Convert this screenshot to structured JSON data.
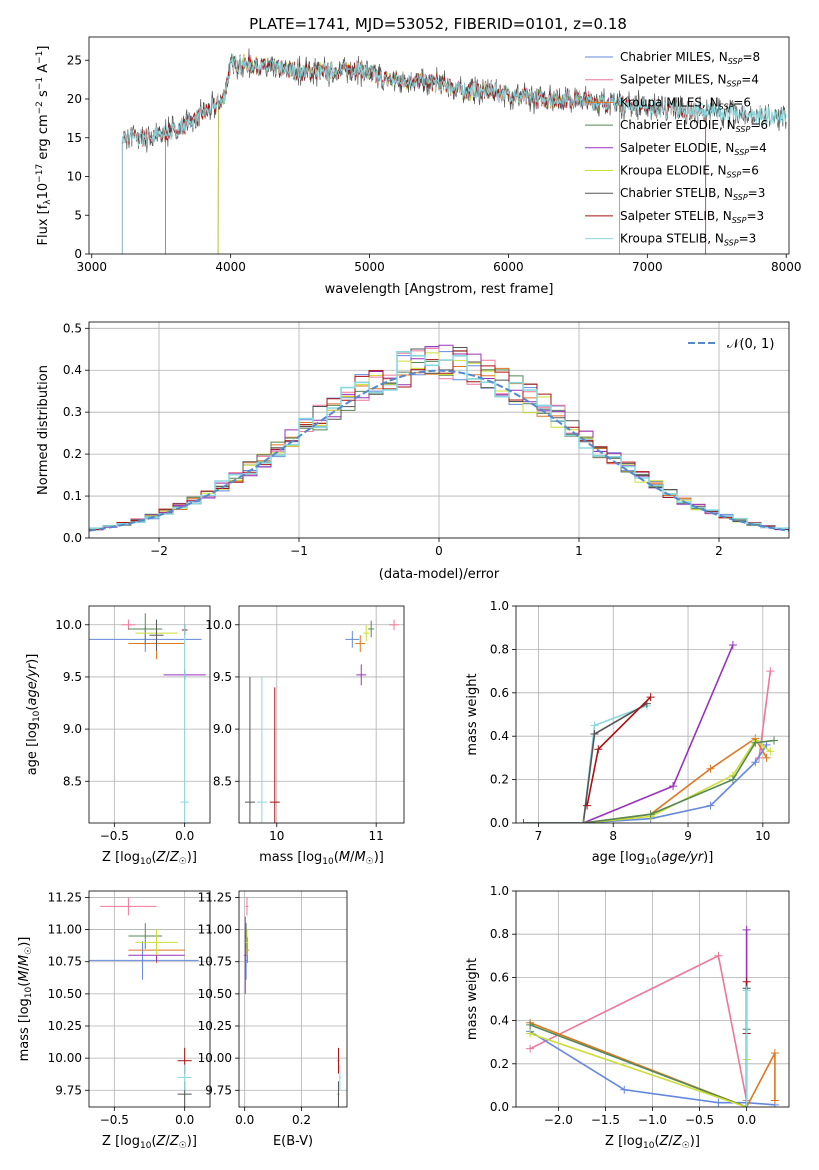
{
  "figure_title": "PLATE=1741, MJD=53052, FIBERID=0101, z=0.18",
  "colors": {
    "Chabrier MILES": "#6688dd",
    "Salpeter MILES": "#ee7799",
    "Kroupa MILES": "#dd7722",
    "Chabrier ELODIE": "#558855",
    "Salpeter ELODIE": "#9933bb",
    "Kroupa ELODIE": "#ccdd33",
    "Chabrier STELIB": "#555555",
    "Salpeter STELIB": "#aa1111",
    "Kroupa STELIB": "#88d8dd",
    "gauss": "#5588cc",
    "grid": "#b0b0b0"
  },
  "chart_data": [
    {
      "id": "spectrum",
      "type": "line",
      "title": "PLATE=1741, MJD=53052, FIBERID=0101, z=0.18",
      "xlabel": "wavelength [Angstrom, rest frame]",
      "ylabel": "Flux [f_λ 10^-17 erg cm^-2 s^-1 A^-1]",
      "xlim": [
        2980,
        8020
      ],
      "ylim": [
        0,
        28
      ],
      "xticks": [
        3000,
        4000,
        5000,
        6000,
        7000,
        8000
      ],
      "yticks": [
        0,
        5,
        10,
        15,
        20,
        25
      ],
      "grid": false,
      "legend_position": "top-right",
      "legend": [
        {
          "base": "Chabrier MILES",
          "n": "8"
        },
        {
          "base": "Salpeter MILES",
          "n": "4"
        },
        {
          "base": "Kroupa MILES",
          "n": "6"
        },
        {
          "base": "Chabrier ELODIE",
          "n": "6"
        },
        {
          "base": "Salpeter ELODIE",
          "n": "4"
        },
        {
          "base": "Kroupa ELODIE",
          "n": "6"
        },
        {
          "base": "Chabrier STELIB",
          "n": "3"
        },
        {
          "base": "Salpeter STELIB",
          "n": "3"
        },
        {
          "base": "Kroupa STELIB",
          "n": "3"
        }
      ],
      "continuum": {
        "x": [
          3220,
          3300,
          3450,
          3600,
          3800,
          3950,
          4000,
          4100,
          4300,
          4500,
          4700,
          4900,
          5100,
          5300,
          5500,
          5700,
          5900,
          6100,
          6300,
          6500,
          6700,
          6900,
          7100,
          7300,
          7500,
          7700,
          7900,
          8000
        ],
        "y": [
          15,
          15,
          15.2,
          16,
          18,
          20,
          24.5,
          24.5,
          24,
          23.5,
          23.5,
          24,
          22.5,
          22.5,
          22,
          21,
          21,
          20.2,
          20,
          20,
          19.5,
          19.3,
          18.8,
          18.5,
          18.3,
          18,
          17.7,
          17.5
        ]
      },
      "model_starts": [
        {
          "model": "Chabrier MILES",
          "start": 3530
        },
        {
          "model": "Salpeter MILES",
          "start": 3530
        },
        {
          "model": "Kroupa MILES",
          "start": 3530
        },
        {
          "model": "Chabrier ELODIE",
          "start": 3910
        },
        {
          "model": "Salpeter ELODIE",
          "start": 3910
        },
        {
          "model": "Kroupa ELODIE",
          "start": 3910
        },
        {
          "model": "Chabrier STELIB",
          "start": 3220
        },
        {
          "model": "Salpeter STELIB",
          "start": 3220
        },
        {
          "model": "Kroupa STELIB",
          "start": 3220
        }
      ]
    },
    {
      "id": "residuals",
      "type": "line",
      "xlabel": "(data-model)/error",
      "ylabel": "Normed distribution",
      "xlim": [
        -2.5,
        2.5
      ],
      "ylim": [
        0,
        0.515
      ],
      "xticks": [
        -2,
        -1,
        0,
        1,
        2
      ],
      "yticks": [
        0.0,
        0.1,
        0.2,
        0.3,
        0.4,
        0.5
      ],
      "grid": true,
      "legend_position": "top-right",
      "legend_label": "𝒩(0, 1)",
      "bin_width": 0.1
    },
    {
      "id": "age_vs_Z",
      "type": "scatter",
      "xlabel": "Z [log10(Z/Z☉)]",
      "ylabel": "age  [log10(age/yr)]",
      "xlim": [
        -0.68,
        0.18
      ],
      "ylim": [
        8.1,
        10.18
      ],
      "xticks": [
        -0.5,
        0.0
      ],
      "yticks": [
        8.5,
        9.0,
        9.5,
        10.0
      ],
      "grid": true,
      "points": [
        {
          "model": "Chabrier MILES",
          "x": -0.28,
          "y": 9.86,
          "xerr": 0.4,
          "yerr": 0.12
        },
        {
          "model": "Salpeter MILES",
          "x": -0.4,
          "y": 10.0,
          "xerr": 0.05,
          "yerr": 0.05
        },
        {
          "model": "Kroupa MILES",
          "x": -0.2,
          "y": 9.82,
          "xerr": 0.2,
          "yerr": 0.15
        },
        {
          "model": "Chabrier ELODIE",
          "x": -0.28,
          "y": 9.96,
          "xerr": 0.12,
          "yerr": 0.15
        },
        {
          "model": "Salpeter ELODIE",
          "x": 0.0,
          "y": 9.52,
          "xerr": 0.15,
          "yerr": 0.05
        },
        {
          "model": "Kroupa ELODIE",
          "x": -0.2,
          "y": 9.92,
          "xerr": 0.15,
          "yerr": 0.08
        },
        {
          "model": "Chabrier STELIB",
          "x": -0.2,
          "y": 9.9,
          "xerr": 0.05,
          "yerr": 0.15
        },
        {
          "model": "Salpeter STELIB",
          "x": 0.0,
          "y": 9.95,
          "xerr": 0.02,
          "yerr": 0.05
        },
        {
          "model": "Kroupa STELIB",
          "x": 0.0,
          "y": 8.3,
          "xerr": 0.03,
          "yerr": 1.7
        }
      ]
    },
    {
      "id": "age_vs_mass",
      "type": "scatter",
      "xlabel": "mass [log10(M/M☉)]",
      "ylabel": "",
      "xlim": [
        9.62,
        11.28
      ],
      "ylim": [
        8.1,
        10.18
      ],
      "xticks": [
        10,
        11
      ],
      "yticks": [
        8.5,
        9.0,
        9.5,
        10.0
      ],
      "grid": true,
      "points": [
        {
          "model": "Chabrier MILES",
          "x": 10.76,
          "y": 9.86,
          "xerr": 0.07,
          "yerr": 0.08
        },
        {
          "model": "Salpeter MILES",
          "x": 11.18,
          "y": 10.0,
          "xerr": 0.05,
          "yerr": 0.05
        },
        {
          "model": "Kroupa MILES",
          "x": 10.84,
          "y": 9.82,
          "xerr": 0.05,
          "yerr": 0.08
        },
        {
          "model": "Chabrier ELODIE",
          "x": 10.95,
          "y": 9.96,
          "xerr": 0.03,
          "yerr": 0.08
        },
        {
          "model": "Salpeter ELODIE",
          "x": 10.85,
          "y": 9.52,
          "xerr": 0.05,
          "yerr": 0.1
        },
        {
          "model": "Kroupa ELODIE",
          "x": 10.9,
          "y": 9.92,
          "xerr": 0.03,
          "yerr": 0.08
        },
        {
          "model": "Chabrier STELIB",
          "x": 9.73,
          "y": 8.3,
          "xerr": 0.05,
          "yerr": 1.2
        },
        {
          "model": "Salpeter STELIB",
          "x": 9.98,
          "y": 8.3,
          "xerr": 0.05,
          "yerr": 1.1
        },
        {
          "model": "Kroupa STELIB",
          "x": 9.85,
          "y": 8.3,
          "xerr": 0.05,
          "yerr": 1.2
        }
      ]
    },
    {
      "id": "mass_weight_vs_age",
      "type": "line",
      "xlabel": "age  [log10(age/yr)]",
      "ylabel": "mass weight",
      "xlim": [
        6.7,
        10.35
      ],
      "ylim": [
        0,
        1
      ],
      "xticks": [
        7,
        8,
        9,
        10
      ],
      "yticks": [
        0.0,
        0.2,
        0.4,
        0.6,
        0.8,
        1.0
      ],
      "grid": true,
      "series": [
        {
          "model": "Kroupa STELIB",
          "x": [
            6.8,
            7.6,
            7.75,
            8.45
          ],
          "y": [
            0.0,
            0.0,
            0.45,
            0.54
          ]
        },
        {
          "model": "Chabrier STELIB",
          "x": [
            6.8,
            7.6,
            7.75,
            8.45
          ],
          "y": [
            0.0,
            0.0,
            0.41,
            0.55
          ]
        },
        {
          "model": "Salpeter STELIB",
          "x": [
            7.65,
            7.8,
            8.5
          ],
          "y": [
            0.08,
            0.34,
            0.58
          ]
        },
        {
          "model": "Salpeter ELODIE",
          "x": [
            7.6,
            8.8,
            9.6
          ],
          "y": [
            0.0,
            0.17,
            0.82
          ]
        },
        {
          "model": "Salpeter MILES",
          "x": [
            9.95,
            10.1
          ],
          "y": [
            0.3,
            0.7
          ]
        },
        {
          "model": "Kroupa MILES",
          "x": [
            7.6,
            8.5,
            9.3,
            9.9,
            10.05
          ],
          "y": [
            0.0,
            0.04,
            0.25,
            0.39,
            0.3
          ]
        },
        {
          "model": "Chabrier MILES",
          "x": [
            7.6,
            8.5,
            9.3,
            9.9,
            10.05
          ],
          "y": [
            0.0,
            0.02,
            0.08,
            0.28,
            0.36
          ]
        },
        {
          "model": "Kroupa ELODIE",
          "x": [
            7.6,
            8.5,
            9.6,
            9.9,
            10.1
          ],
          "y": [
            0.0,
            0.03,
            0.22,
            0.38,
            0.33
          ]
        },
        {
          "model": "Chabrier ELODIE",
          "x": [
            7.6,
            8.5,
            9.6,
            9.9,
            10.15
          ],
          "y": [
            0.0,
            0.04,
            0.2,
            0.37,
            0.38
          ]
        }
      ]
    },
    {
      "id": "mass_vs_Z",
      "type": "scatter",
      "xlabel": "Z [log10(Z/Z☉)]",
      "ylabel": "mass [log10(M/M☉)]",
      "xlim": [
        -0.68,
        0.18
      ],
      "ylim": [
        9.62,
        11.3
      ],
      "xticks": [
        -0.5,
        0.0
      ],
      "yticks": [
        9.75,
        10.0,
        10.25,
        10.5,
        10.75,
        11.0,
        11.25
      ],
      "grid": true,
      "points": [
        {
          "model": "Chabrier MILES",
          "x": -0.3,
          "y": 10.76,
          "xerr": 0.4,
          "yerr": 0.15
        },
        {
          "model": "Salpeter MILES",
          "x": -0.4,
          "y": 11.18,
          "xerr": 0.2,
          "yerr": 0.07
        },
        {
          "model": "Kroupa MILES",
          "x": -0.2,
          "y": 10.84,
          "xerr": 0.2,
          "yerr": 0.1
        },
        {
          "model": "Chabrier ELODIE",
          "x": -0.28,
          "y": 10.95,
          "xerr": 0.12,
          "yerr": 0.1
        },
        {
          "model": "Salpeter ELODIE",
          "x": -0.2,
          "y": 10.8,
          "xerr": 0.2,
          "yerr": 0.05
        },
        {
          "model": "Kroupa ELODIE",
          "x": -0.2,
          "y": 10.9,
          "xerr": 0.15,
          "yerr": 0.1
        },
        {
          "model": "Chabrier STELIB",
          "x": 0.0,
          "y": 9.72,
          "xerr": 0.05,
          "yerr": 0.1
        },
        {
          "model": "Salpeter STELIB",
          "x": 0.0,
          "y": 9.98,
          "xerr": 0.05,
          "yerr": 0.1
        },
        {
          "model": "Kroupa STELIB",
          "x": 0.0,
          "y": 9.85,
          "xerr": 0.05,
          "yerr": 0.1
        }
      ]
    },
    {
      "id": "mass_vs_ebv",
      "type": "scatter",
      "xlabel": "E(B-V)",
      "ylabel": "",
      "xlim": [
        -0.02,
        0.36
      ],
      "ylim": [
        9.62,
        11.3
      ],
      "xticks": [
        0.0,
        0.2
      ],
      "yticks": [
        9.75,
        10.0,
        10.25,
        10.5,
        10.75,
        11.0,
        11.25
      ],
      "grid": true,
      "points": [
        {
          "model": "Chabrier MILES",
          "x": 0.005,
          "y": 10.76,
          "xerr": 0.005,
          "yerr": 0.15
        },
        {
          "model": "Salpeter MILES",
          "x": 0.008,
          "y": 11.18,
          "xerr": 0.005,
          "yerr": 0.07
        },
        {
          "model": "Kroupa MILES",
          "x": 0.01,
          "y": 10.84,
          "xerr": 0.005,
          "yerr": 0.1
        },
        {
          "model": "Chabrier ELODIE",
          "x": 0.005,
          "y": 10.95,
          "xerr": 0.005,
          "yerr": 0.1
        },
        {
          "model": "Salpeter ELODIE",
          "x": 0.002,
          "y": 10.8,
          "xerr": 0.005,
          "yerr": 0.3
        },
        {
          "model": "Kroupa ELODIE",
          "x": 0.008,
          "y": 10.9,
          "xerr": 0.005,
          "yerr": 0.1
        },
        {
          "model": "Chabrier STELIB",
          "x": 0.33,
          "y": 9.72,
          "xerr": 0.003,
          "yerr": 0.1
        },
        {
          "model": "Salpeter STELIB",
          "x": 0.33,
          "y": 9.98,
          "xerr": 0.003,
          "yerr": 0.1
        },
        {
          "model": "Kroupa STELIB",
          "x": 0.335,
          "y": 9.85,
          "xerr": 0.003,
          "yerr": 0.1
        }
      ]
    },
    {
      "id": "mass_weight_vs_Z",
      "type": "line",
      "xlabel": "Z [log10(Z/Z☉)]",
      "ylabel": "mass weight",
      "xlim": [
        -2.45,
        0.45
      ],
      "ylim": [
        0,
        1
      ],
      "xticks": [
        -2.0,
        -1.5,
        -1.0,
        -0.5,
        0.0
      ],
      "yticks": [
        0.0,
        0.2,
        0.4,
        0.6,
        0.8,
        1.0
      ],
      "grid": true,
      "series": [
        {
          "model": "Salpeter MILES",
          "x": [
            -2.3,
            -0.3,
            0.0,
            0.0
          ],
          "y": [
            0.27,
            0.7,
            0.03,
            0.02
          ]
        },
        {
          "model": "Chabrier MILES",
          "x": [
            -2.3,
            -1.3,
            -0.3,
            0.0,
            0.3
          ],
          "y": [
            0.35,
            0.08,
            0.02,
            0.02,
            0.01
          ]
        },
        {
          "model": "Kroupa MILES",
          "x": [
            -2.3,
            0.0,
            0.3,
            0.3
          ],
          "y": [
            0.39,
            0.0,
            0.25,
            0.03
          ]
        },
        {
          "model": "Chabrier ELODIE",
          "x": [
            -2.3,
            0.0,
            0.0
          ],
          "y": [
            0.38,
            0.0,
            0.36
          ]
        },
        {
          "model": "Kroupa ELODIE",
          "x": [
            -2.3,
            0.0,
            0.0
          ],
          "y": [
            0.34,
            0.0,
            0.22
          ]
        },
        {
          "model": "Salpeter ELODIE",
          "x": [
            0.0,
            0.0
          ],
          "y": [
            0.82,
            0.0
          ]
        },
        {
          "model": "Salpeter STELIB",
          "x": [
            0.0,
            0.0
          ],
          "y": [
            0.58,
            0.34
          ]
        },
        {
          "model": "Chabrier STELIB",
          "x": [
            0.0,
            0.0
          ],
          "y": [
            0.55,
            0.0
          ]
        },
        {
          "model": "Kroupa STELIB",
          "x": [
            0.0,
            0.0
          ],
          "y": [
            0.54,
            0.0
          ]
        }
      ]
    }
  ]
}
